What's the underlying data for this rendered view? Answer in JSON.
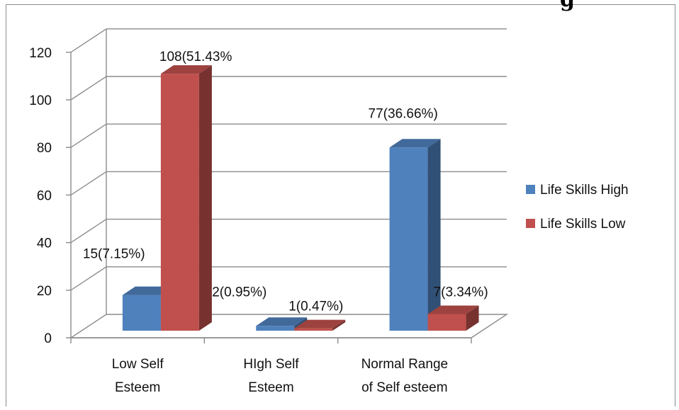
{
  "title_fragment": "g",
  "chart_data": {
    "type": "bar",
    "style": "3d-clustered-column",
    "categories": [
      [
        "Low Self",
        "Esteem"
      ],
      [
        "HIgh Self",
        "Esteem"
      ],
      [
        "Normal Range",
        "of Self esteem"
      ]
    ],
    "series": [
      {
        "name": "Life Skills High",
        "color": "#4f81bd",
        "values": [
          15,
          2,
          77
        ],
        "labels": [
          "15(7.15%)",
          "2(0.95%)",
          "77(36.66%)"
        ]
      },
      {
        "name": "Life Skills Low",
        "color": "#c0504d",
        "values": [
          108,
          1,
          7
        ],
        "labels": [
          "108(51.43%",
          "1(0.47%)",
          "7(3.34%)"
        ]
      }
    ],
    "y_ticks": [
      "0",
      "20",
      "40",
      "60",
      "80",
      "100",
      "120"
    ],
    "ylim": [
      0,
      120
    ],
    "grid": true,
    "legend": "right"
  }
}
